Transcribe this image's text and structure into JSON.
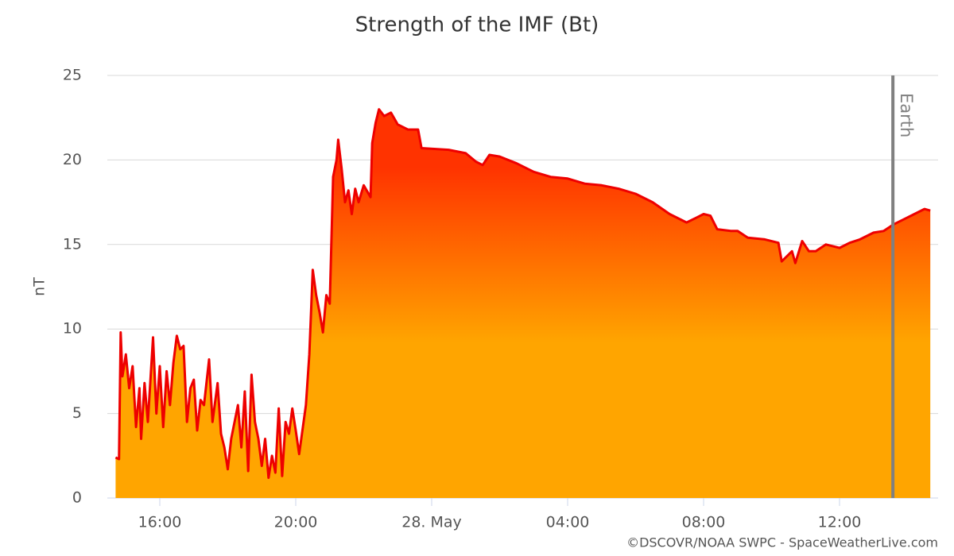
{
  "chart_data": {
    "type": "area",
    "title": "Strength of the IMF (Bt)",
    "y_label": "nT",
    "credit": "©DSCOVR/NOAA SWPC - SpaceWeatherLive.com",
    "line_color": "#ee0000",
    "fill_colors": [
      "#ff3300",
      "#ffa500"
    ],
    "grid": true,
    "xlim": [
      14.456,
      38.9
    ],
    "xticks": [
      {
        "value": 16,
        "label": "16:00"
      },
      {
        "value": 20,
        "label": "20:00"
      },
      {
        "value": 24,
        "label": "28. May"
      },
      {
        "value": 28,
        "label": "04:00"
      },
      {
        "value": 32,
        "label": "08:00"
      },
      {
        "value": 36,
        "label": "12:00"
      }
    ],
    "ylim": [
      0,
      25
    ],
    "yticks": [
      0,
      5,
      10,
      15,
      20,
      25
    ],
    "annotations": [
      {
        "x": 37.57,
        "label": "Earth",
        "color": "#808080"
      }
    ],
    "x": [
      14.7,
      14.8,
      14.85,
      14.9,
      15.0,
      15.1,
      15.2,
      15.3,
      15.4,
      15.45,
      15.55,
      15.65,
      15.8,
      15.9,
      16.0,
      16.1,
      16.2,
      16.3,
      16.4,
      16.5,
      16.6,
      16.7,
      16.8,
      16.9,
      17.0,
      17.1,
      17.2,
      17.3,
      17.45,
      17.55,
      17.7,
      17.8,
      17.9,
      18.0,
      18.1,
      18.3,
      18.4,
      18.5,
      18.6,
      18.7,
      18.8,
      18.9,
      19.0,
      19.1,
      19.2,
      19.3,
      19.4,
      19.5,
      19.6,
      19.7,
      19.8,
      19.9,
      20.0,
      20.1,
      20.3,
      20.4,
      20.5,
      20.6,
      20.7,
      20.8,
      20.9,
      21.0,
      21.1,
      21.2,
      21.25,
      21.35,
      21.45,
      21.55,
      21.65,
      21.75,
      21.85,
      22.0,
      22.2,
      22.25,
      22.35,
      22.45,
      22.6,
      22.8,
      23.0,
      23.3,
      23.6,
      23.7,
      24.5,
      25.0,
      25.3,
      25.5,
      25.7,
      26.0,
      26.5,
      27.0,
      27.5,
      28.0,
      28.5,
      29.0,
      29.5,
      30.0,
      30.5,
      31.0,
      31.3,
      31.5,
      31.8,
      32.0,
      32.2,
      32.4,
      32.8,
      33.0,
      33.3,
      33.8,
      34.2,
      34.3,
      34.6,
      34.7,
      34.9,
      35.1,
      35.3,
      35.6,
      36.0,
      36.3,
      36.6,
      37.0,
      37.3,
      37.6,
      38.0,
      38.5,
      38.67
    ],
    "values": [
      2.4,
      2.3,
      9.8,
      7.2,
      8.5,
      6.5,
      7.8,
      4.2,
      6.5,
      3.5,
      6.8,
      4.5,
      9.5,
      5.0,
      7.8,
      4.2,
      7.5,
      5.5,
      8.0,
      9.6,
      8.8,
      9.0,
      4.5,
      6.5,
      7.0,
      4.0,
      5.8,
      5.5,
      8.2,
      4.5,
      6.8,
      3.8,
      3.0,
      1.7,
      3.5,
      5.5,
      3.0,
      6.3,
      1.6,
      7.3,
      4.5,
      3.5,
      1.9,
      3.5,
      1.2,
      2.5,
      1.5,
      5.3,
      1.3,
      4.5,
      3.8,
      5.3,
      4.0,
      2.6,
      5.5,
      8.5,
      13.5,
      12.0,
      11.0,
      9.8,
      12.0,
      11.5,
      19.0,
      20.0,
      21.2,
      19.5,
      17.5,
      18.2,
      16.8,
      18.3,
      17.5,
      18.5,
      17.8,
      21.0,
      22.2,
      23.0,
      22.6,
      22.8,
      22.1,
      21.8,
      21.8,
      20.7,
      20.6,
      20.4,
      19.9,
      19.7,
      20.3,
      20.2,
      19.8,
      19.3,
      19.0,
      18.9,
      18.6,
      18.5,
      18.3,
      18.0,
      17.5,
      16.8,
      16.5,
      16.3,
      16.6,
      16.8,
      16.7,
      15.9,
      15.8,
      15.8,
      15.4,
      15.3,
      15.1,
      14.0,
      14.6,
      13.9,
      15.2,
      14.6,
      14.6,
      15.0,
      14.8,
      15.1,
      15.3,
      15.7,
      15.8,
      16.2,
      16.6,
      17.1,
      17.0
    ]
  }
}
